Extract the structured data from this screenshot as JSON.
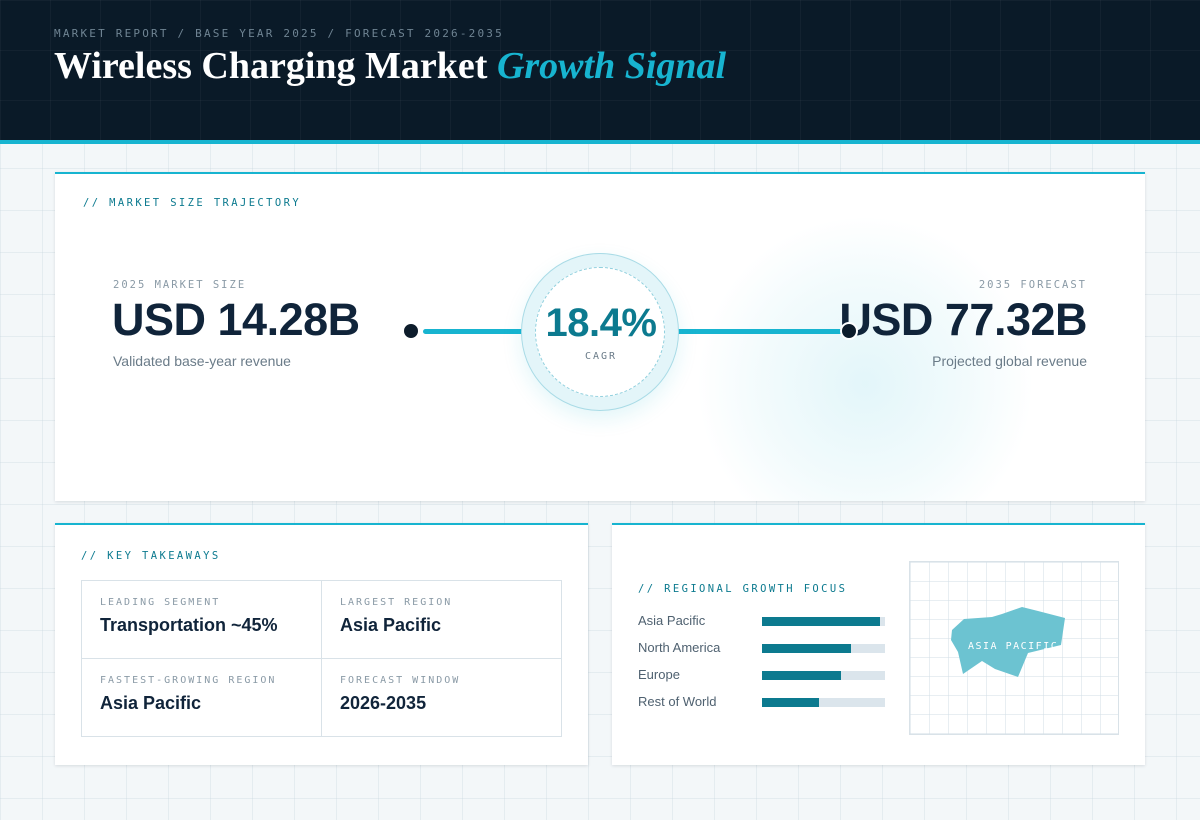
{
  "header": {
    "breadcrumb": "MARKET REPORT / BASE YEAR 2025 / FORECAST 2026-2035",
    "title_main": "Wireless Charging Market",
    "title_accent": "Growth Signal"
  },
  "trajectory": {
    "section_label": "// MARKET SIZE TRAJECTORY",
    "start": {
      "label": "2025 MARKET SIZE",
      "value": "USD 14.28B",
      "note": "Validated base-year revenue"
    },
    "cagr": {
      "value": "18.4%",
      "label": "CAGR"
    },
    "end": {
      "label": "2035 FORECAST",
      "value": "USD 77.32B",
      "note": "Projected global revenue"
    }
  },
  "takeaways": {
    "section_label": "// KEY TAKEAWAYS",
    "items": [
      {
        "label": "LEADING SEGMENT",
        "value": "Transportation ~45%"
      },
      {
        "label": "LARGEST REGION",
        "value": "Asia Pacific"
      },
      {
        "label": "FASTEST-GROWING REGION",
        "value": "Asia Pacific"
      },
      {
        "label": "FORECAST WINDOW",
        "value": "2026-2035"
      }
    ]
  },
  "regional": {
    "section_label": "// REGIONAL GROWTH FOCUS",
    "bars": [
      {
        "label": "Asia Pacific",
        "fraction": 0.96
      },
      {
        "label": "North America",
        "fraction": 0.72
      },
      {
        "label": "Europe",
        "fraction": 0.64
      },
      {
        "label": "Rest of World",
        "fraction": 0.46
      }
    ],
    "map_label": "ASIA PACIFIC",
    "map_color": "#6cc3d1"
  },
  "colors": {
    "accent": "#17b4d0",
    "accent_dark": "#0c7a8f",
    "navy": "#0a1a28",
    "text_dark": "#10243a"
  }
}
